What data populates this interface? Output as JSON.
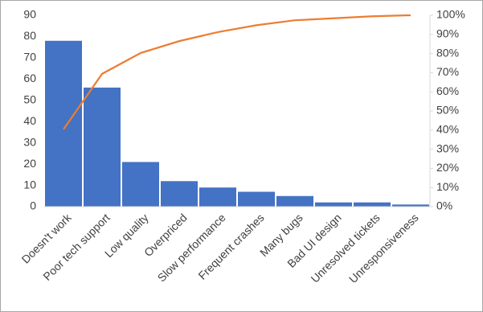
{
  "chart_data": {
    "type": "bar",
    "categories": [
      "Doesn't work",
      "Poor tech support",
      "Low quality",
      "Overpriced",
      "Slow performance",
      "Frequent crashes",
      "Many bugs",
      "Bad UI design",
      "Unresolved tickets",
      "Unresponsiveness"
    ],
    "series": [
      {
        "type": "bar",
        "color": "#4472c4",
        "values": [
          78,
          56,
          21,
          12,
          9,
          7,
          5,
          2,
          2,
          1
        ]
      },
      {
        "type": "line",
        "axis": "y2",
        "color": "#ed7d31",
        "values": [
          40.4,
          69.4,
          80.3,
          86.5,
          91.2,
          94.8,
          97.4,
          98.4,
          99.5,
          100
        ]
      }
    ],
    "ylim": [
      0,
      90
    ],
    "yticks": [
      0,
      10,
      20,
      30,
      40,
      50,
      60,
      70,
      80,
      90
    ],
    "y2lim": [
      0,
      100
    ],
    "y2ticks": [
      {
        "value": 0,
        "label": "0%"
      },
      {
        "value": 10,
        "label": "10%"
      },
      {
        "value": 20,
        "label": "20%"
      },
      {
        "value": 30,
        "label": "30%"
      },
      {
        "value": 40,
        "label": "40%"
      },
      {
        "value": 50,
        "label": "50%"
      },
      {
        "value": 60,
        "label": "60%"
      },
      {
        "value": 70,
        "label": "70%"
      },
      {
        "value": 80,
        "label": "80%"
      },
      {
        "value": 90,
        "label": "90%"
      },
      {
        "value": 100,
        "label": "100%"
      }
    ],
    "grid": false
  }
}
